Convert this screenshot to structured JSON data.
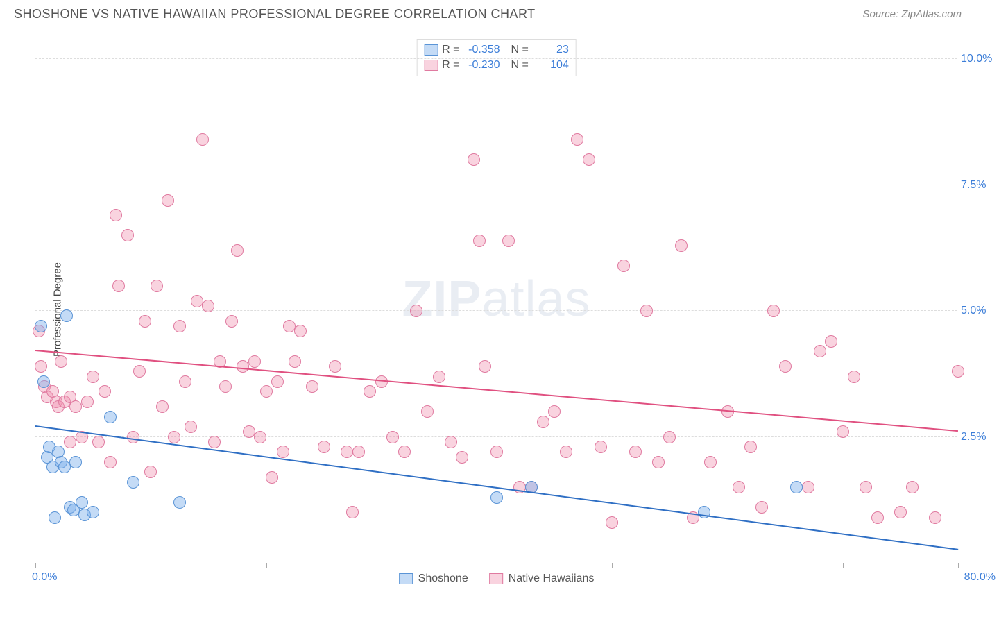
{
  "header": {
    "title": "SHOSHONE VS NATIVE HAWAIIAN PROFESSIONAL DEGREE CORRELATION CHART",
    "source": "Source: ZipAtlas.com"
  },
  "watermark": {
    "bold": "ZIP",
    "light": "atlas"
  },
  "chart": {
    "type": "scatter",
    "ylabel": "Professional Degree",
    "background_color": "#ffffff",
    "grid_color": "#dddddd",
    "axis_color": "#cccccc",
    "tick_label_color": "#3b7dd8",
    "label_color": "#444444",
    "title_fontsize": 18,
    "tick_fontsize": 16,
    "label_fontsize": 15,
    "xlim": [
      0,
      80
    ],
    "ylim": [
      0,
      10.5
    ],
    "y_ticks": [
      2.5,
      5.0,
      7.5,
      10.0
    ],
    "y_tick_labels": [
      "2.5%",
      "5.0%",
      "7.5%",
      "10.0%"
    ],
    "x_ticks": [
      0,
      10,
      20,
      30,
      40,
      50,
      60,
      70,
      80
    ],
    "x_lim_labels": {
      "min": "0.0%",
      "max": "80.0%"
    },
    "marker_radius": 9,
    "marker_stroke_width": 1,
    "trend_line_width": 2,
    "series": [
      {
        "name": "Shoshone",
        "color_fill": "rgba(125,175,235,0.45)",
        "color_stroke": "#5a94d6",
        "trend_color": "#2f6fc4",
        "R": "-0.358",
        "N": "23",
        "trend": {
          "x1": 0,
          "y1": 2.7,
          "x2": 80,
          "y2": 0.25
        },
        "points": [
          [
            0.5,
            4.7
          ],
          [
            0.7,
            3.6
          ],
          [
            1.0,
            2.1
          ],
          [
            1.2,
            2.3
          ],
          [
            1.5,
            1.9
          ],
          [
            1.7,
            0.9
          ],
          [
            2.0,
            2.2
          ],
          [
            2.2,
            2.0
          ],
          [
            2.5,
            1.9
          ],
          [
            2.7,
            4.9
          ],
          [
            3.0,
            1.1
          ],
          [
            3.3,
            1.05
          ],
          [
            3.5,
            2.0
          ],
          [
            4.0,
            1.2
          ],
          [
            4.3,
            0.95
          ],
          [
            5.0,
            1.0
          ],
          [
            6.5,
            2.9
          ],
          [
            8.5,
            1.6
          ],
          [
            12.5,
            1.2
          ],
          [
            40.0,
            1.3
          ],
          [
            43.0,
            1.5
          ],
          [
            58.0,
            1.0
          ],
          [
            66.0,
            1.5
          ]
        ]
      },
      {
        "name": "Native Hawaiians",
        "color_fill": "rgba(240,145,175,0.40)",
        "color_stroke": "#e07aa0",
        "trend_color": "#e05080",
        "R": "-0.230",
        "N": "104",
        "trend": {
          "x1": 0,
          "y1": 4.2,
          "x2": 80,
          "y2": 2.6
        },
        "points": [
          [
            0.3,
            4.6
          ],
          [
            0.5,
            3.9
          ],
          [
            0.8,
            3.5
          ],
          [
            1.0,
            3.3
          ],
          [
            1.5,
            3.4
          ],
          [
            1.8,
            3.2
          ],
          [
            2.0,
            3.1
          ],
          [
            2.2,
            4.0
          ],
          [
            2.5,
            3.2
          ],
          [
            3.0,
            3.3
          ],
          [
            3.0,
            2.4
          ],
          [
            3.5,
            3.1
          ],
          [
            4.0,
            2.5
          ],
          [
            4.5,
            3.2
          ],
          [
            5.0,
            3.7
          ],
          [
            5.5,
            2.4
          ],
          [
            6.0,
            3.4
          ],
          [
            6.5,
            2.0
          ],
          [
            7.0,
            6.9
          ],
          [
            7.2,
            5.5
          ],
          [
            8.0,
            6.5
          ],
          [
            8.5,
            2.5
          ],
          [
            9.0,
            3.8
          ],
          [
            9.5,
            4.8
          ],
          [
            10.0,
            1.8
          ],
          [
            10.5,
            5.5
          ],
          [
            11.0,
            3.1
          ],
          [
            11.5,
            7.2
          ],
          [
            12.0,
            2.5
          ],
          [
            12.5,
            4.7
          ],
          [
            13.0,
            3.6
          ],
          [
            13.5,
            2.7
          ],
          [
            14.0,
            5.2
          ],
          [
            14.5,
            8.4
          ],
          [
            15.0,
            5.1
          ],
          [
            15.5,
            2.4
          ],
          [
            16.0,
            4.0
          ],
          [
            16.5,
            3.5
          ],
          [
            17.0,
            4.8
          ],
          [
            17.5,
            6.2
          ],
          [
            18.0,
            3.9
          ],
          [
            18.5,
            2.6
          ],
          [
            19.0,
            4.0
          ],
          [
            19.5,
            2.5
          ],
          [
            20.0,
            3.4
          ],
          [
            20.5,
            1.7
          ],
          [
            21.0,
            3.6
          ],
          [
            21.5,
            2.2
          ],
          [
            22.0,
            4.7
          ],
          [
            22.5,
            4.0
          ],
          [
            23.0,
            4.6
          ],
          [
            24.0,
            3.5
          ],
          [
            25.0,
            2.3
          ],
          [
            26.0,
            3.9
          ],
          [
            27.0,
            2.2
          ],
          [
            27.5,
            1.0
          ],
          [
            28.0,
            2.2
          ],
          [
            29.0,
            3.4
          ],
          [
            30.0,
            3.6
          ],
          [
            31.0,
            2.5
          ],
          [
            32.0,
            2.2
          ],
          [
            33.0,
            5.0
          ],
          [
            34.0,
            3.0
          ],
          [
            35.0,
            3.7
          ],
          [
            36.0,
            2.4
          ],
          [
            37.0,
            2.1
          ],
          [
            38.0,
            8.0
          ],
          [
            38.5,
            6.4
          ],
          [
            39.0,
            3.9
          ],
          [
            40.0,
            2.2
          ],
          [
            41.0,
            6.4
          ],
          [
            42.0,
            1.5
          ],
          [
            43.0,
            1.5
          ],
          [
            44.0,
            2.8
          ],
          [
            45.0,
            3.0
          ],
          [
            46.0,
            2.2
          ],
          [
            47.0,
            8.4
          ],
          [
            48.0,
            8.0
          ],
          [
            49.0,
            2.3
          ],
          [
            50.0,
            0.8
          ],
          [
            51.0,
            5.9
          ],
          [
            52.0,
            2.2
          ],
          [
            53.0,
            5.0
          ],
          [
            54.0,
            2.0
          ],
          [
            55.0,
            2.5
          ],
          [
            56.0,
            6.3
          ],
          [
            57.0,
            0.9
          ],
          [
            58.5,
            2.0
          ],
          [
            60.0,
            3.0
          ],
          [
            61.0,
            1.5
          ],
          [
            62.0,
            2.3
          ],
          [
            63.0,
            1.1
          ],
          [
            64.0,
            5.0
          ],
          [
            65.0,
            3.9
          ],
          [
            67.0,
            1.5
          ],
          [
            68.0,
            4.2
          ],
          [
            69.0,
            4.4
          ],
          [
            70.0,
            2.6
          ],
          [
            71.0,
            3.7
          ],
          [
            72.0,
            1.5
          ],
          [
            73.0,
            0.9
          ],
          [
            75.0,
            1.0
          ],
          [
            76.0,
            1.5
          ],
          [
            78.0,
            0.9
          ],
          [
            80.0,
            3.8
          ]
        ]
      }
    ]
  }
}
